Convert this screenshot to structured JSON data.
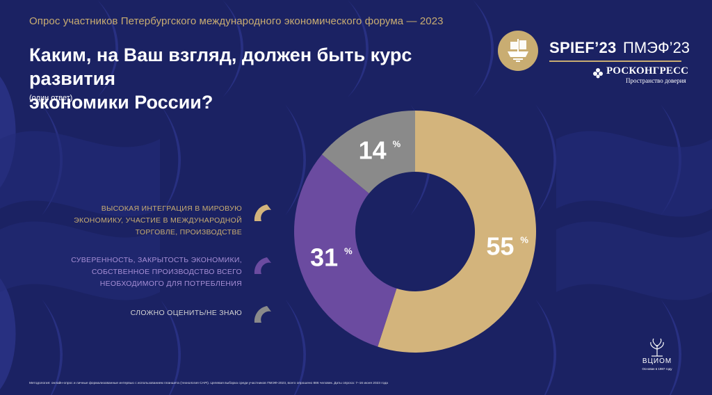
{
  "header": {
    "survey_line": "Опрос участников Петербургского международного экономического форума — 2023",
    "title_line1": "Каким, на Ваш взгляд, должен быть курс развития",
    "title_line2": "экономики России?",
    "note": "(один ответ)"
  },
  "logos": {
    "spief": "SPIEF’23",
    "pmef": "ПМЭФ’23",
    "roscongress": "РОСКОНГРЕСС",
    "roscongress_tagline": "Пространство доверия",
    "wciom": "ВЦИОМ",
    "wciom_tagline": "Основан в 1987 году"
  },
  "legend": [
    {
      "lines": [
        "ВЫСОКАЯ ИНТЕГРАЦИЯ В МИРОВУЮ",
        "ЭКОНОМИКУ, УЧАСТИЕ В МЕЖДУНАРОДНОЙ",
        "ТОРГОВЛЕ, ПРОИЗВОДСТВЕ"
      ]
    },
    {
      "lines": [
        "СУВЕРЕННОСТЬ, ЗАКРЫТОСТЬ ЭКОНОМИКИ,",
        "СОБСТВЕННОЕ ПРОИЗВОДСТВО ВСЕГО",
        "НЕОБХОДИМОГО ДЛЯ ПОТРЕБЛЕНИЯ"
      ]
    },
    {
      "lines": [
        "СЛОЖНО ОЦЕНИТЬ/НЕ ЗНАЮ"
      ]
    }
  ],
  "chart_data": {
    "type": "pie",
    "variant": "donut",
    "categories": [
      "ВЫСОКАЯ ИНТЕГРАЦИЯ В МИРОВУЮ ЭКОНОМИКУ, УЧАСТИЕ В МЕЖДУНАРОДНОЙ ТОРГОВЛЕ, ПРОИЗВОДСТВЕ",
      "СУВЕРЕННОСТЬ, ЗАКРЫТОСТЬ ЭКОНОМИКИ, СОБСТВЕННОЕ ПРОИЗВОДСТВО ВСЕГО НЕОБХОДИМОГО ДЛЯ ПОТРЕБЛЕНИЯ",
      "СЛОЖНО ОЦЕНИТЬ/НЕ ЗНАЮ"
    ],
    "values": [
      55,
      31,
      14
    ],
    "value_labels": [
      "55",
      "31",
      "14"
    ],
    "unit": "%",
    "colors": [
      "#d3b47c",
      "#6b4ba0",
      "#8a8a8a"
    ],
    "legend_position": "left"
  },
  "colors": {
    "background": "#1b2263",
    "accent_gold": "#c9ad72",
    "purple": "#6b4ba0",
    "gray": "#8a8a8a"
  },
  "footer": {
    "methodology": "Методология: онлайн-опрос и личные формализованные интервью с использованием планшета (технология CAPI). Целевая выборка среди участников ПМЭФ-2023, всего опрошено 886 человек. Даты опроса: 7–16 июня 2023 года"
  }
}
